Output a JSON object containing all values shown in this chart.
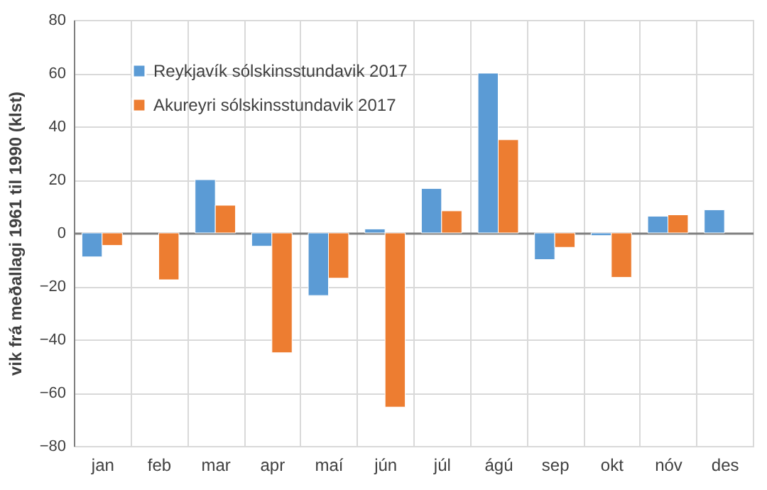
{
  "chart_data": {
    "type": "bar",
    "ylabel": "vik frá meðallagi 1961 til 1990 (klst)",
    "categories": [
      "jan",
      "feb",
      "mar",
      "apr",
      "maí",
      "jún",
      "júl",
      "ágú",
      "sep",
      "okt",
      "nóv",
      "des"
    ],
    "series": [
      {
        "name": "Reykjavík sólskinsstundavik 2017",
        "color": "#5b9bd5",
        "values": [
          -9,
          null,
          20,
          -5,
          -23.5,
          1.5,
          16.7,
          60,
          -10,
          -1,
          6.3,
          8.7
        ]
      },
      {
        "name": "Akureyri sólskinsstundavik 2017",
        "color": "#ed7d31",
        "values": [
          -4.7,
          -17.6,
          10.4,
          -45,
          -17,
          -65.4,
          8.3,
          35,
          -5.4,
          -16.7,
          6.8,
          null
        ]
      }
    ],
    "ylim": [
      -80,
      80
    ],
    "yticks": [
      -80,
      -60,
      -40,
      -20,
      0,
      20,
      40,
      60,
      80
    ],
    "grid": true,
    "legend": "top left"
  }
}
